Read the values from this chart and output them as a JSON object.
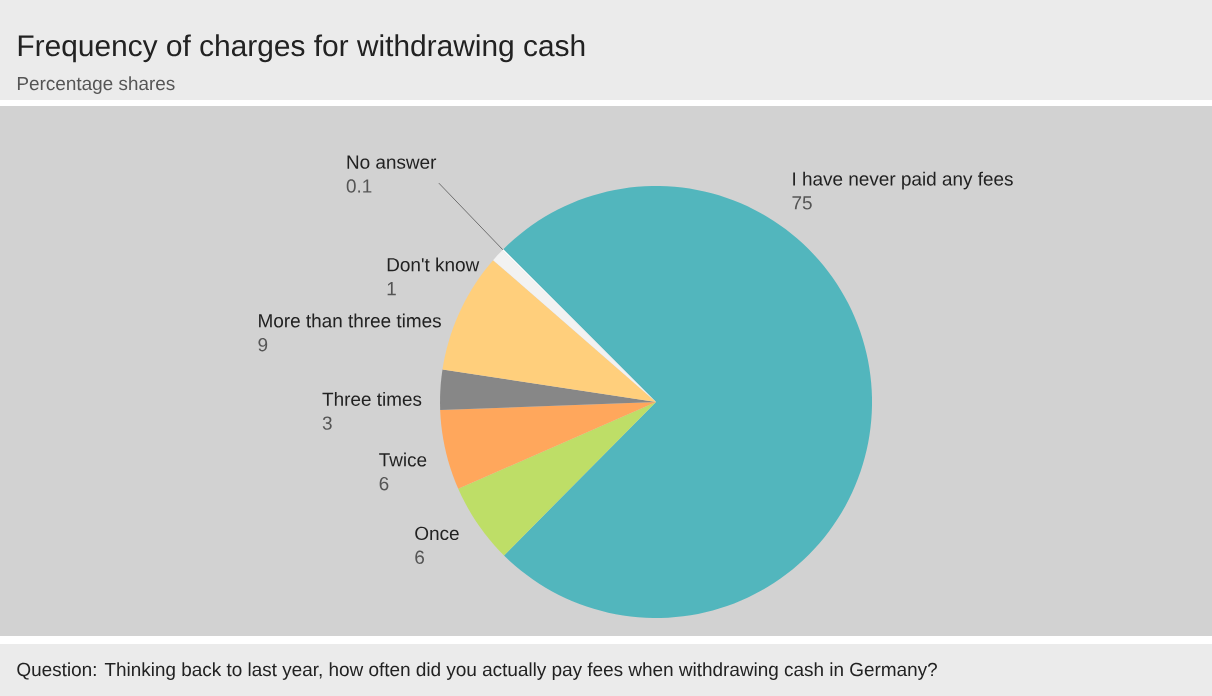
{
  "chart_data": {
    "type": "pie",
    "title": "Frequency of charges for withdrawing cash",
    "subtitle": "Percentage shares",
    "categories": [
      "I have never paid any fees",
      "Once",
      "Twice",
      "Three times",
      "More than three times",
      "Don't know",
      "No answer"
    ],
    "values": [
      75,
      6,
      6,
      3,
      9,
      1,
      0.1
    ],
    "colors": [
      "#52b6bd",
      "#bede67",
      "#ffa75c",
      "#878787",
      "#ffcf7c",
      "#f2f2f2",
      "#ffffff"
    ],
    "data_labels": true,
    "annotations": [
      "Question: Thinking back to last year, how often did you actually pay fees when withdrawing cash in Germany?"
    ]
  }
}
